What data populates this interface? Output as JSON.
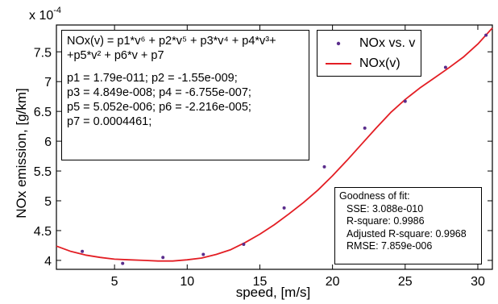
{
  "chart_data": {
    "type": "scatter",
    "xlabel": "speed, [m/s]",
    "ylabel": "NOx emission, [g/km]",
    "y_scale_label": "x 10",
    "y_scale_exponent": "-4",
    "xlim": [
      1.0,
      31.0
    ],
    "ylim": [
      3.85,
      7.95
    ],
    "x_ticks": [
      5,
      10,
      15,
      20,
      25,
      30
    ],
    "x_tick_labels": [
      "5",
      "10",
      "15",
      "20",
      "25",
      "30"
    ],
    "y_ticks": [
      4,
      4.5,
      5,
      5.5,
      6,
      6.5,
      7,
      7.5
    ],
    "y_tick_labels": [
      "4",
      "4.5",
      "5",
      "5.5",
      "6",
      "6.5",
      "7",
      "7.5"
    ],
    "grid": false,
    "legend_position": "top-right",
    "series": [
      {
        "name": "NOx vs. v",
        "kind": "points",
        "color": "#5a2d8c",
        "x": [
          2.78,
          5.56,
          8.33,
          11.11,
          13.89,
          16.67,
          19.44,
          22.22,
          25.0,
          27.78,
          30.56
        ],
        "y": [
          4.15,
          3.95,
          4.05,
          4.1,
          4.27,
          4.88,
          5.57,
          6.22,
          6.67,
          7.24,
          7.78
        ]
      },
      {
        "name": "NOx(v)",
        "kind": "fit-curve",
        "color": "#e31e24",
        "x": [
          1,
          2,
          3,
          4,
          5,
          6,
          7,
          8,
          9,
          10,
          11,
          12,
          13,
          14,
          15,
          16,
          17,
          18,
          19,
          20,
          21,
          22,
          23,
          24,
          25,
          26,
          27,
          28,
          29,
          30,
          31
        ],
        "y": [
          4.24,
          4.15,
          4.09,
          4.05,
          4.02,
          4.01,
          4.0,
          3.99,
          3.99,
          4.01,
          4.04,
          4.1,
          4.18,
          4.3,
          4.44,
          4.6,
          4.78,
          4.97,
          5.18,
          5.42,
          5.68,
          5.95,
          6.22,
          6.48,
          6.7,
          6.89,
          7.06,
          7.23,
          7.41,
          7.63,
          7.9
        ]
      }
    ]
  },
  "equation_box": {
    "line1": "NOx(v) = p1*v⁶ + p2*v⁵ + p3*v⁴ + p4*v³+",
    "line2": "+p5*v² + p6*v + p7",
    "params": [
      "p1 = 1.79e-011;     p2 = -1.55e-009;",
      "p3 = 4.849e-008;  p4 = -6.755e-007;",
      "p5 = 5.052e-006;  p6 = -2.216e-005;",
      "p7 = 0.0004461;"
    ]
  },
  "legend": {
    "points_label": "NOx vs. v",
    "curve_label": "NOx(v)"
  },
  "goodness_of_fit": {
    "title": "Goodness of fit:",
    "sse": "SSE: 3.088e-010",
    "r_square": "R-square: 0.9986",
    "adj_r_square": "Adjusted R-square: 0.9968",
    "rmse": "RMSE: 7.859e-006"
  }
}
